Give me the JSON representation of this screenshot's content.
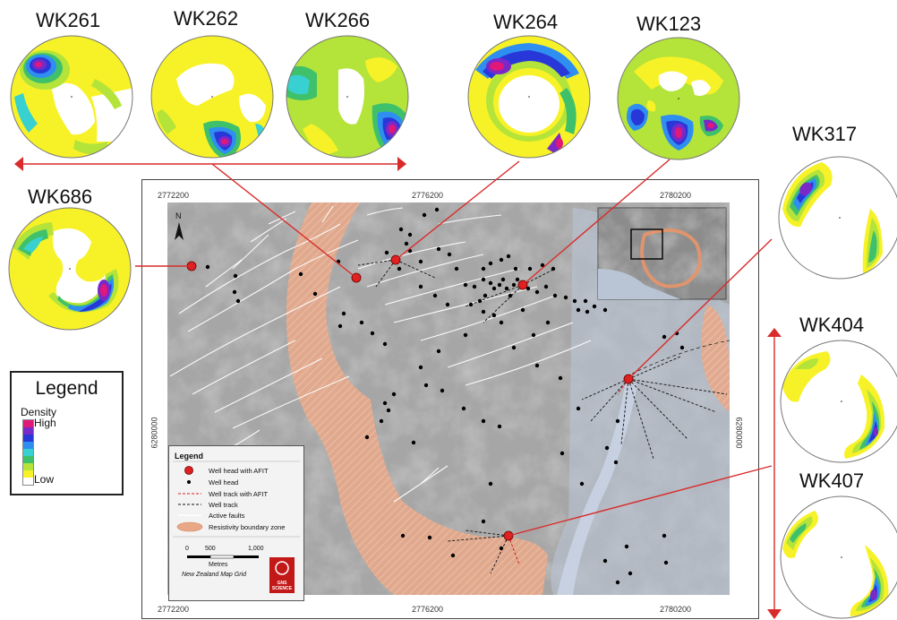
{
  "wells": {
    "wk261": "WK261",
    "wk262": "WK262",
    "wk266": "WK266",
    "wk264": "WK264",
    "wk123": "WK123",
    "wk317": "WK317",
    "wk686": "WK686",
    "wk404": "WK404",
    "wk407": "WK407"
  },
  "density_legend": {
    "title": "Legend",
    "density": "Density",
    "high": "High",
    "low": "Low",
    "colors": [
      "#e0187a",
      "#7a28c8",
      "#2838d8",
      "#2f8ff0",
      "#38d0d0",
      "#3fc06a",
      "#b4e33a",
      "#f7f227",
      "#ffffff"
    ]
  },
  "map": {
    "coords": {
      "top_x1": "2772200",
      "top_x2": "2776200",
      "top_x3": "2780200",
      "bottom_x1": "2772200",
      "bottom_x2": "2776200",
      "bottom_x3": "2780200",
      "left_y": "6280000",
      "right_y": "6280000"
    },
    "north": "N",
    "legend": {
      "title": "Legend",
      "items": [
        "Well head with AFIT",
        "Well head",
        "Well track with AFIT",
        "Well track",
        "Active faults",
        "Resistivity boundary zone"
      ],
      "scale_ticks": [
        "0",
        "500",
        "1,000"
      ],
      "scale_unit": "Metres",
      "grid": "New Zealand Map Grid",
      "logo_text": "GNS SCIENCE"
    }
  }
}
